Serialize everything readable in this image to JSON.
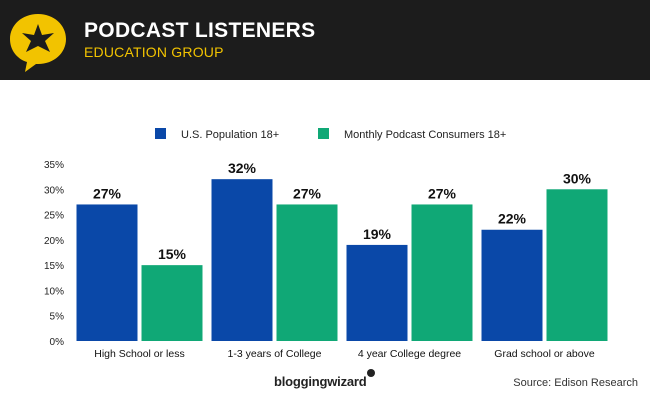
{
  "header": {
    "title": "PODCAST LISTENERS",
    "subtitle": "EDUCATION GROUP",
    "logo_icon": "star-speech-bubble-icon"
  },
  "chart_data": {
    "type": "bar",
    "title": "PODCAST LISTENERS",
    "subtitle": "EDUCATION GROUP",
    "categories": [
      "High School or less",
      "1-3 years of College",
      "4 year College degree",
      "Grad school or above"
    ],
    "series": [
      {
        "name": "U.S. Population 18+",
        "color": "#0a48a8",
        "values": [
          27,
          32,
          19,
          22
        ]
      },
      {
        "name": "Monthly Podcast Consumers 18+",
        "color": "#10a876",
        "values": [
          15,
          27,
          27,
          30
        ]
      }
    ],
    "ylim": [
      0,
      35
    ],
    "yticks": [
      0,
      5,
      10,
      15,
      20,
      25,
      30,
      35
    ],
    "tick_suffix": "%",
    "xlabel": "",
    "ylabel": "",
    "legend": "top-center",
    "grid": false
  },
  "footer": {
    "brand": "bloggingwizard",
    "source": "Source: Edison Research"
  },
  "colors": {
    "header_bg": "#1c1c1c",
    "accent": "#f2c300",
    "us_population": "#0a48a8",
    "podcast_consumers": "#10a876"
  }
}
